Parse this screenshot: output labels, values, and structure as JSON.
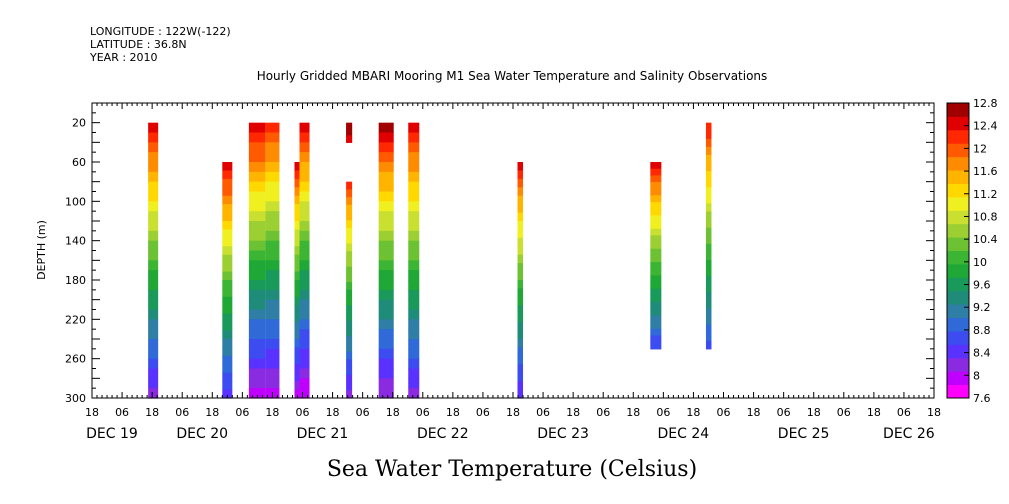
{
  "header": {
    "longitude": "LONGITUDE : 122W(-122)",
    "latitude": "LATITUDE : 36.8N",
    "year": "YEAR : 2010"
  },
  "chart_data": {
    "type": "heatmap",
    "title": "Hourly Gridded MBARI Mooring M1 Sea Water Temperature and Salinity Observations",
    "xlabel": "",
    "ylabel": "DEPTH (m)",
    "colorbar_label": "Sea Water Temperature (Celsius)",
    "x_range_hours": [
      0,
      168
    ],
    "x_start_hour_label": "18",
    "y_range": [
      0,
      300
    ],
    "y_reversed": true,
    "y_ticks": [
      "20",
      "60",
      "100",
      "140",
      "180",
      "220",
      "260",
      "300"
    ],
    "x_hour_ticks": [
      "18",
      "00",
      "06",
      "12",
      "18",
      "00",
      "06",
      "12",
      "18",
      "00",
      "06",
      "12",
      "18",
      "00",
      "06",
      "12",
      "18",
      "00",
      "06",
      "12",
      "18",
      "00",
      "06",
      "12",
      "18",
      "00",
      "06",
      "12",
      "18",
      "00",
      "06",
      "12",
      "18",
      "00",
      "06",
      "12",
      "18",
      "00",
      "06",
      "12",
      "18",
      "00",
      "06",
      "12",
      "18",
      "00",
      "06",
      "12",
      "18",
      "00",
      "06",
      "12",
      "18",
      "00",
      "06",
      "12",
      "18"
    ],
    "x_day_labels": [
      {
        "label": "DEC 19",
        "hour": 0
      },
      {
        "label": "DEC 20",
        "hour": 18
      },
      {
        "label": "DEC 21",
        "hour": 42
      },
      {
        "label": "DEC 22",
        "hour": 66
      },
      {
        "label": "DEC 23",
        "hour": 90
      },
      {
        "label": "DEC 24",
        "hour": 114
      },
      {
        "label": "DEC 25",
        "hour": 138
      },
      {
        "label": "DEC 26",
        "hour": 159
      }
    ],
    "colorbar": {
      "min": 7.6,
      "max": 12.8,
      "labels": [
        "12.8",
        "12.4",
        "12",
        "11.6",
        "11.2",
        "10.8",
        "10.4",
        "10",
        "9.6",
        "9.2",
        "8.8",
        "8.4",
        "8",
        "7.6"
      ],
      "colors": [
        "#ff00ff",
        "#c000ff",
        "#8a2be2",
        "#5a32ff",
        "#3c4cf0",
        "#2f6ad8",
        "#2f7ea6",
        "#1f8c7a",
        "#1a9a5a",
        "#1fa835",
        "#3cb535",
        "#6cc233",
        "#9cd032",
        "#c9e030",
        "#f0f020",
        "#ffd800",
        "#ffb400",
        "#ff8c00",
        "#ff5a00",
        "#ff2800",
        "#e00000",
        "#a00000"
      ]
    },
    "columns": [
      {
        "start": 11.2,
        "end": 13.2,
        "top": 20,
        "bottom": 300,
        "temp_top": 12.6,
        "temp_bottom": 8.2
      },
      {
        "start": 26.0,
        "end": 28.0,
        "top": 60,
        "bottom": 300,
        "temp_top": 12.6,
        "temp_bottom": 8.4
      },
      {
        "start": 31.3,
        "end": 34.6,
        "top": 20,
        "bottom": 300,
        "temp_top": 12.7,
        "temp_bottom": 7.9
      },
      {
        "start": 34.6,
        "end": 37.4,
        "top": 20,
        "bottom": 300,
        "temp_top": 12.4,
        "temp_bottom": 7.9
      },
      {
        "start": 40.4,
        "end": 41.4,
        "top": 60,
        "bottom": 300,
        "temp_top": 12.5,
        "temp_bottom": 8.0
      },
      {
        "start": 41.4,
        "end": 43.4,
        "top": 20,
        "bottom": 300,
        "temp_top": 12.6,
        "temp_bottom": 7.8
      },
      {
        "start": 50.7,
        "end": 51.9,
        "top": 20,
        "bottom": 40,
        "temp_top": 12.7,
        "temp_bottom": 12.5
      },
      {
        "start": 50.7,
        "end": 51.9,
        "top": 80,
        "bottom": 300,
        "temp_top": 12.3,
        "temp_bottom": 8.2
      },
      {
        "start": 57.2,
        "end": 60.2,
        "top": 20,
        "bottom": 300,
        "temp_top": 12.8,
        "temp_bottom": 8.0
      },
      {
        "start": 63.1,
        "end": 65.3,
        "top": 20,
        "bottom": 300,
        "temp_top": 12.6,
        "temp_bottom": 8.2
      },
      {
        "start": 84.9,
        "end": 86.0,
        "top": 60,
        "bottom": 300,
        "temp_top": 12.5,
        "temp_bottom": 8.3
      },
      {
        "start": 111.4,
        "end": 113.6,
        "top": 60,
        "bottom": 250,
        "temp_top": 12.5,
        "temp_bottom": 8.6
      },
      {
        "start": 122.5,
        "end": 123.6,
        "top": 20,
        "bottom": 250,
        "temp_top": 12.4,
        "temp_bottom": 8.7
      }
    ]
  }
}
